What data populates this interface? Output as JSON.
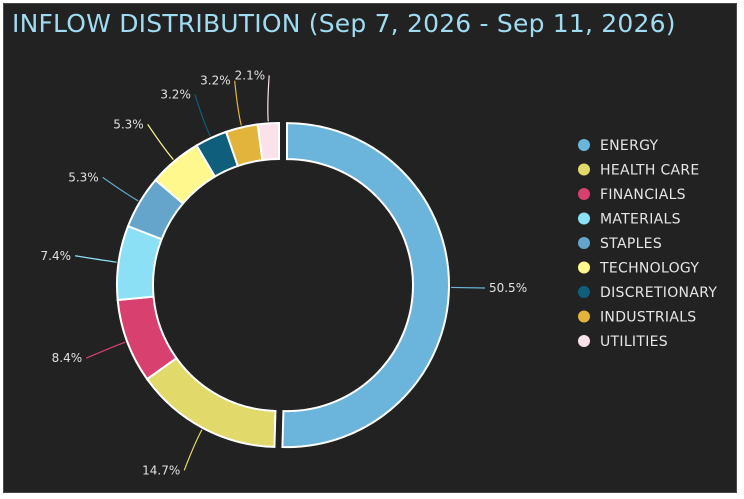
{
  "chart_data": {
    "type": "pie",
    "variant": "donut",
    "title": "INFLOW DISTRIBUTION (Sep 7, 2026 - Sep 11, 2026)",
    "categories": [
      "ENERGY",
      "HEALTH CARE",
      "FINANCIALS",
      "MATERIALS",
      "STAPLES",
      "TECHNOLOGY",
      "DISCRETIONARY",
      "INDUSTRIALS",
      "UTILITIES"
    ],
    "values": [
      50.5,
      14.7,
      8.4,
      7.4,
      5.3,
      5.3,
      3.2,
      3.2,
      2.1
    ],
    "labels": [
      "50.5%",
      "14.7%",
      "8.4%",
      "7.4%",
      "5.3%",
      "5.3%",
      "3.2%",
      "3.2%",
      "2.1%"
    ],
    "colors": [
      "#6bb5dc",
      "#e2d96b",
      "#d8416f",
      "#8ce0f6",
      "#65a5cc",
      "#fff98d",
      "#0e5e7c",
      "#e3b43c",
      "#fbe2ea"
    ],
    "legend_placement": "right",
    "exploded_slice": "ENERGY"
  }
}
